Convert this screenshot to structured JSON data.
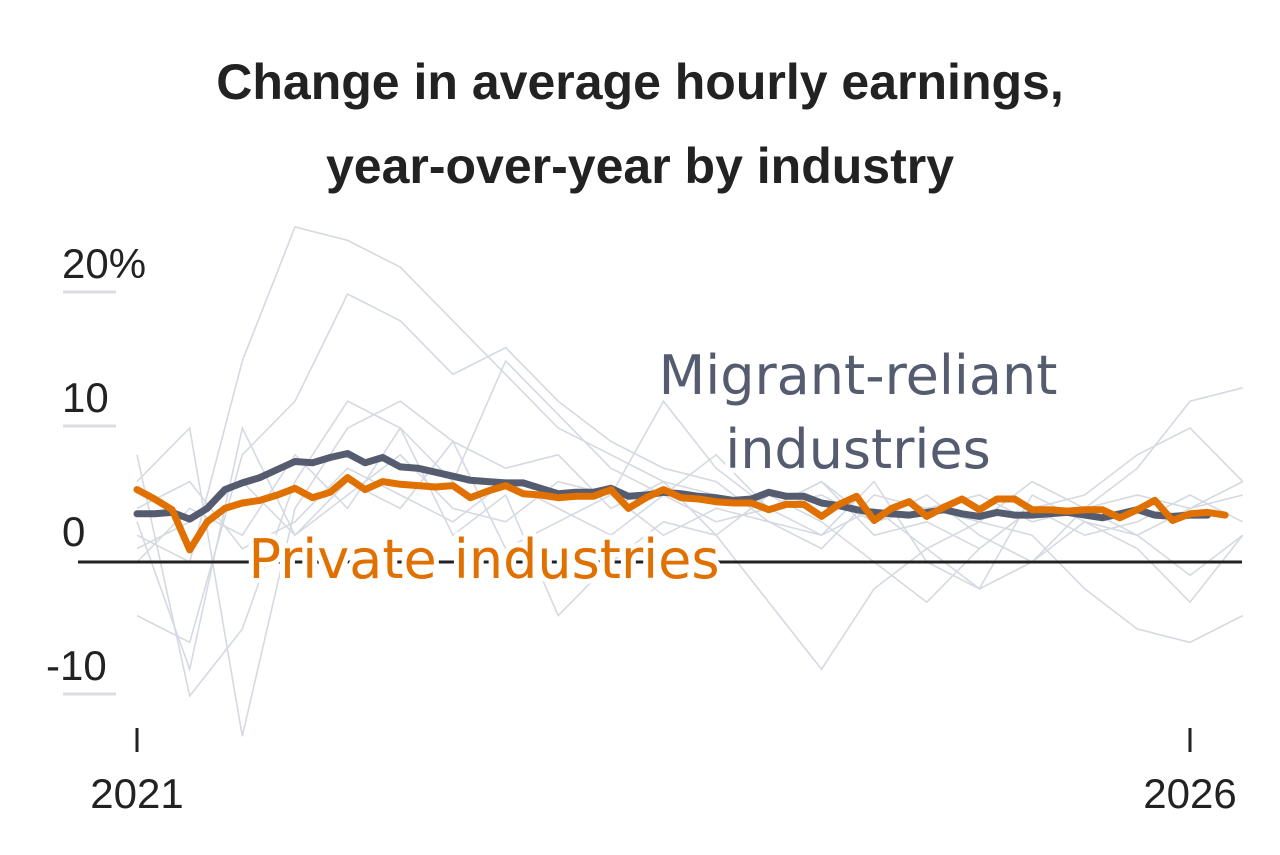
{
  "chart_data": {
    "type": "line",
    "title": "Change in average hourly earnings, year-over-year by industry",
    "title_lines": [
      "Change in average hourly earnings,",
      "year-over-year by industry"
    ],
    "x_start": "2021-01",
    "x_interval": "month",
    "x_ticks": [
      {
        "value": "2021-01",
        "label": "2021"
      },
      {
        "value": "2026-01",
        "label": "2026"
      }
    ],
    "y_ticks": [
      {
        "value": 20,
        "label": "20%"
      },
      {
        "value": 10,
        "label": "10"
      },
      {
        "value": 0,
        "label": "0"
      },
      {
        "value": -10,
        "label": "-10"
      }
    ],
    "ylim": [
      -14,
      26
    ],
    "unit": "%",
    "series": [
      {
        "name": "Migrant-reliant industries",
        "label_lines": [
          "Migrant-reliant",
          "industries"
        ],
        "color": "#555c70",
        "values": [
          3.6,
          3.6,
          3.7,
          3.2,
          4.0,
          5.4,
          5.9,
          6.3,
          6.9,
          7.5,
          7.4,
          7.8,
          8.1,
          7.4,
          7.8,
          7.1,
          7.0,
          6.7,
          6.4,
          6.1,
          6.0,
          5.9,
          5.9,
          5.5,
          5.1,
          5.2,
          5.2,
          5.5,
          4.9,
          5.0,
          5.2,
          5.1,
          4.9,
          4.8,
          4.6,
          4.7,
          5.2,
          4.9,
          4.9,
          4.4,
          4.2,
          3.9,
          3.7,
          3.6,
          3.5,
          3.7,
          3.9,
          3.6,
          3.4,
          3.7,
          3.5,
          3.5,
          3.6,
          3.7,
          3.5,
          3.3,
          3.6,
          3.9,
          3.5,
          3.4,
          3.5,
          3.5
        ]
      },
      {
        "name": "Private industries",
        "color": "#e07000",
        "values": [
          5.4,
          4.7,
          3.9,
          0.9,
          3.0,
          4.0,
          4.4,
          4.6,
          5.0,
          5.5,
          4.8,
          5.2,
          6.3,
          5.4,
          6.0,
          5.8,
          5.7,
          5.6,
          5.7,
          4.8,
          5.3,
          5.7,
          5.1,
          5.0,
          4.8,
          4.9,
          4.9,
          5.4,
          4.0,
          4.8,
          5.4,
          4.8,
          4.7,
          4.5,
          4.4,
          4.4,
          3.9,
          4.3,
          4.3,
          3.4,
          4.3,
          4.9,
          3.1,
          4.0,
          4.5,
          3.4,
          4.1,
          4.7,
          3.9,
          4.7,
          4.7,
          3.9,
          3.9,
          3.8,
          3.9,
          3.9,
          3.3,
          3.9,
          4.6,
          3.1,
          3.6,
          3.7,
          3.5
        ]
      }
    ],
    "background_series": {
      "color": "#d5d9e2",
      "interval_months": 3,
      "series": [
        [
          2,
          0,
          15,
          25,
          24,
          22,
          18,
          14,
          10,
          8,
          6,
          5,
          4,
          5,
          3,
          4,
          5,
          3,
          4,
          5,
          4,
          6
        ],
        [
          -4,
          -6,
          8,
          12,
          20,
          18,
          14,
          16,
          12,
          9,
          7,
          6,
          3,
          2,
          4,
          1,
          -2,
          0,
          3,
          2,
          -1,
          2
        ],
        [
          6,
          10,
          -13,
          4,
          10,
          12,
          9,
          7,
          8,
          4,
          6,
          2,
          5,
          3,
          0,
          -3,
          1,
          4,
          5,
          8,
          10,
          6
        ],
        [
          8,
          -10,
          -5,
          6,
          12,
          10,
          6,
          15,
          11,
          7,
          5,
          8,
          4,
          6,
          3,
          5,
          2,
          0,
          4,
          7,
          12,
          13
        ],
        [
          0,
          4,
          2,
          8,
          4,
          10,
          2,
          5,
          -4,
          0,
          3,
          2,
          -3,
          -8,
          -2,
          1,
          3,
          2,
          -2,
          -5,
          -6,
          -4
        ],
        [
          3,
          -8,
          10,
          2,
          6,
          4,
          9,
          1,
          3,
          5,
          12,
          7,
          4,
          2,
          6,
          0,
          -2,
          5,
          3,
          1,
          -3,
          2
        ],
        [
          4,
          6,
          1,
          3,
          7,
          5,
          3,
          6,
          4,
          2,
          5,
          3,
          4,
          6,
          2,
          3,
          1,
          4,
          2,
          3,
          5,
          3
        ],
        [
          1,
          3,
          6,
          2,
          5,
          8,
          4,
          3,
          6,
          5,
          2,
          4,
          3,
          1,
          5,
          4,
          3,
          6,
          4,
          2,
          4,
          5
        ]
      ]
    },
    "grid": false,
    "legend": "direct labels"
  }
}
